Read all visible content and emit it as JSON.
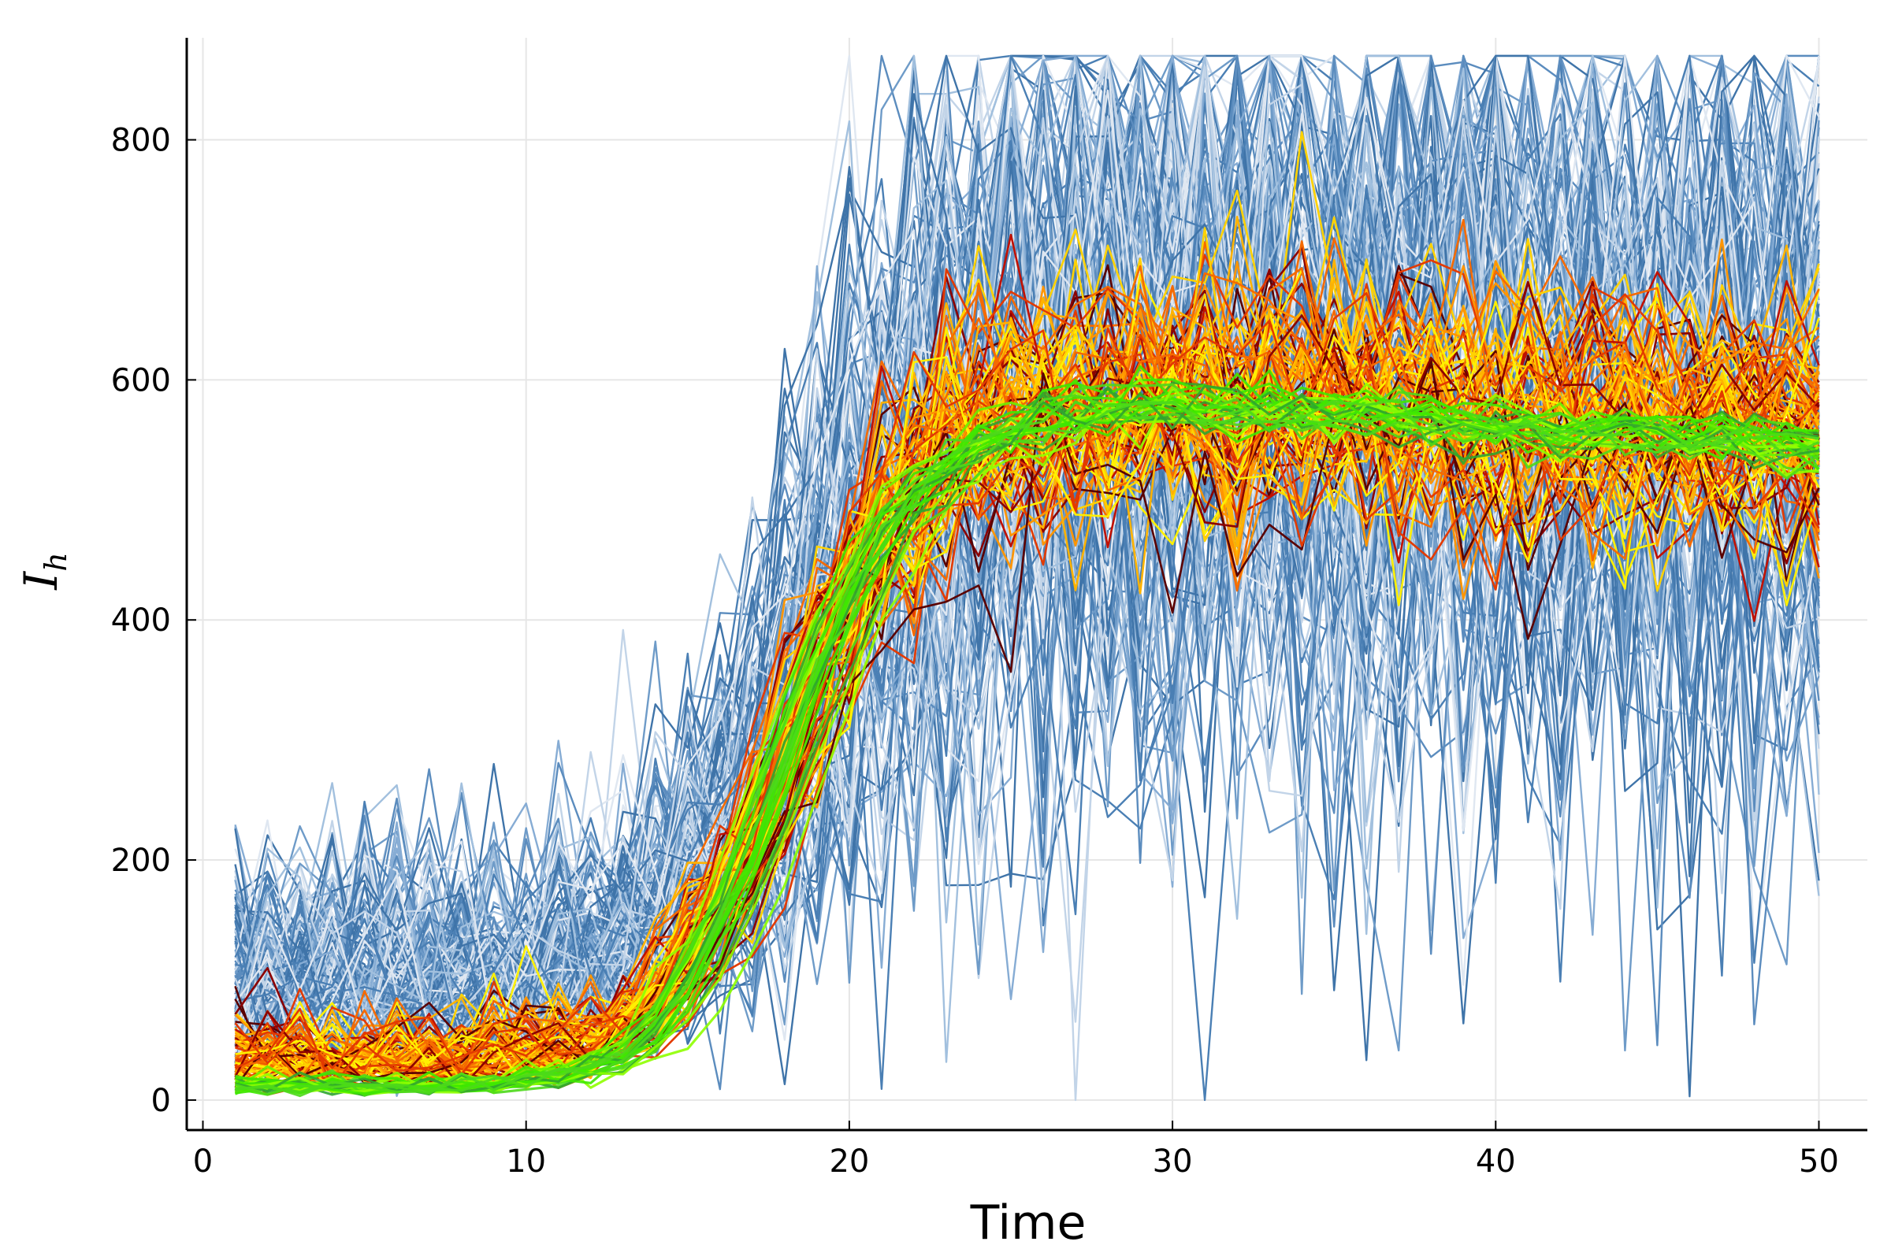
{
  "chart_data": {
    "type": "line",
    "xlabel": "Time",
    "ylabel": {
      "main": "I",
      "sub": "h"
    },
    "xlim": [
      -0.5,
      51.5
    ],
    "ylim": [
      -25,
      885
    ],
    "xticks": [
      0,
      10,
      20,
      30,
      40,
      50
    ],
    "yticks": [
      0,
      200,
      400,
      600,
      800
    ],
    "grid": true,
    "legend": "none",
    "x": [
      1,
      2,
      3,
      4,
      5,
      6,
      7,
      8,
      9,
      10,
      11,
      12,
      13,
      14,
      15,
      16,
      17,
      18,
      19,
      20,
      21,
      22,
      23,
      24,
      25,
      26,
      27,
      28,
      29,
      30,
      31,
      32,
      33,
      34,
      35,
      36,
      37,
      38,
      39,
      40,
      41,
      42,
      43,
      44,
      45,
      46,
      47,
      48,
      49,
      50
    ],
    "trend": [
      3,
      3,
      3,
      3,
      3,
      3,
      4,
      4,
      5,
      7,
      10,
      16,
      26,
      45,
      80,
      130,
      195,
      270,
      340,
      405,
      455,
      495,
      520,
      540,
      553,
      562,
      567,
      570,
      572,
      573,
      573,
      573,
      572,
      571,
      570,
      569,
      567,
      565,
      563,
      561,
      559,
      557,
      555,
      553,
      551,
      549,
      547,
      545,
      543,
      541
    ],
    "series_groups": [
      {
        "name": "blue",
        "colors": [
          "#3f74a9",
          "#4a7fb4",
          "#5b8cbe",
          "#6e9bc8",
          "#86acd4",
          "#a2c0de",
          "#c2d4e8",
          "#dfe7f1"
        ],
        "count": 150,
        "noise": 0.55,
        "spread": 0.14,
        "base_noise": 75,
        "base_offset": 80,
        "stroke_width": 2.4,
        "opacity": 1
      },
      {
        "name": "warm",
        "colors": [
          "#5a0000",
          "#8b0000",
          "#c01000",
          "#e33a00",
          "#f56a00",
          "#ff9500",
          "#ffb300",
          "#ffd200",
          "#fff000"
        ],
        "count": 80,
        "noise": 0.17,
        "spread": 0.045,
        "base_noise": 28,
        "base_offset": 20,
        "stroke_width": 2.6,
        "opacity": 1
      },
      {
        "name": "green",
        "colors": [
          "#4cd91a",
          "#3fe800",
          "#6cf000",
          "#8eff00",
          "#2fa52f"
        ],
        "count": 24,
        "noise": 0.035,
        "spread": 0.012,
        "base_noise": 8,
        "base_offset": 5,
        "stroke_width": 3.2,
        "opacity": 0.9
      }
    ]
  }
}
